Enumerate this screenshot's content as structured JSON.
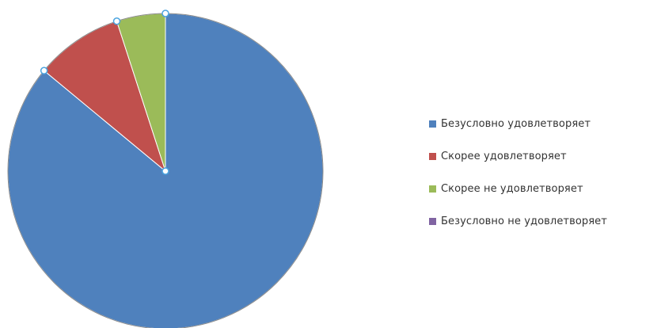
{
  "chart_data": {
    "type": "pie",
    "categories": [
      "Безусловно удовлетворяет",
      "Скорее  удовлетворяет",
      "Скорее  не удовлетворяет",
      "Безусловно не удовлетворяет"
    ],
    "values": [
      86,
      9,
      5,
      0
    ],
    "colors": [
      "#4f81bd",
      "#c0504d",
      "#9bbb59",
      "#8064a2"
    ],
    "legend_position": "right",
    "start_angle": "top",
    "direction": "clockwise"
  }
}
